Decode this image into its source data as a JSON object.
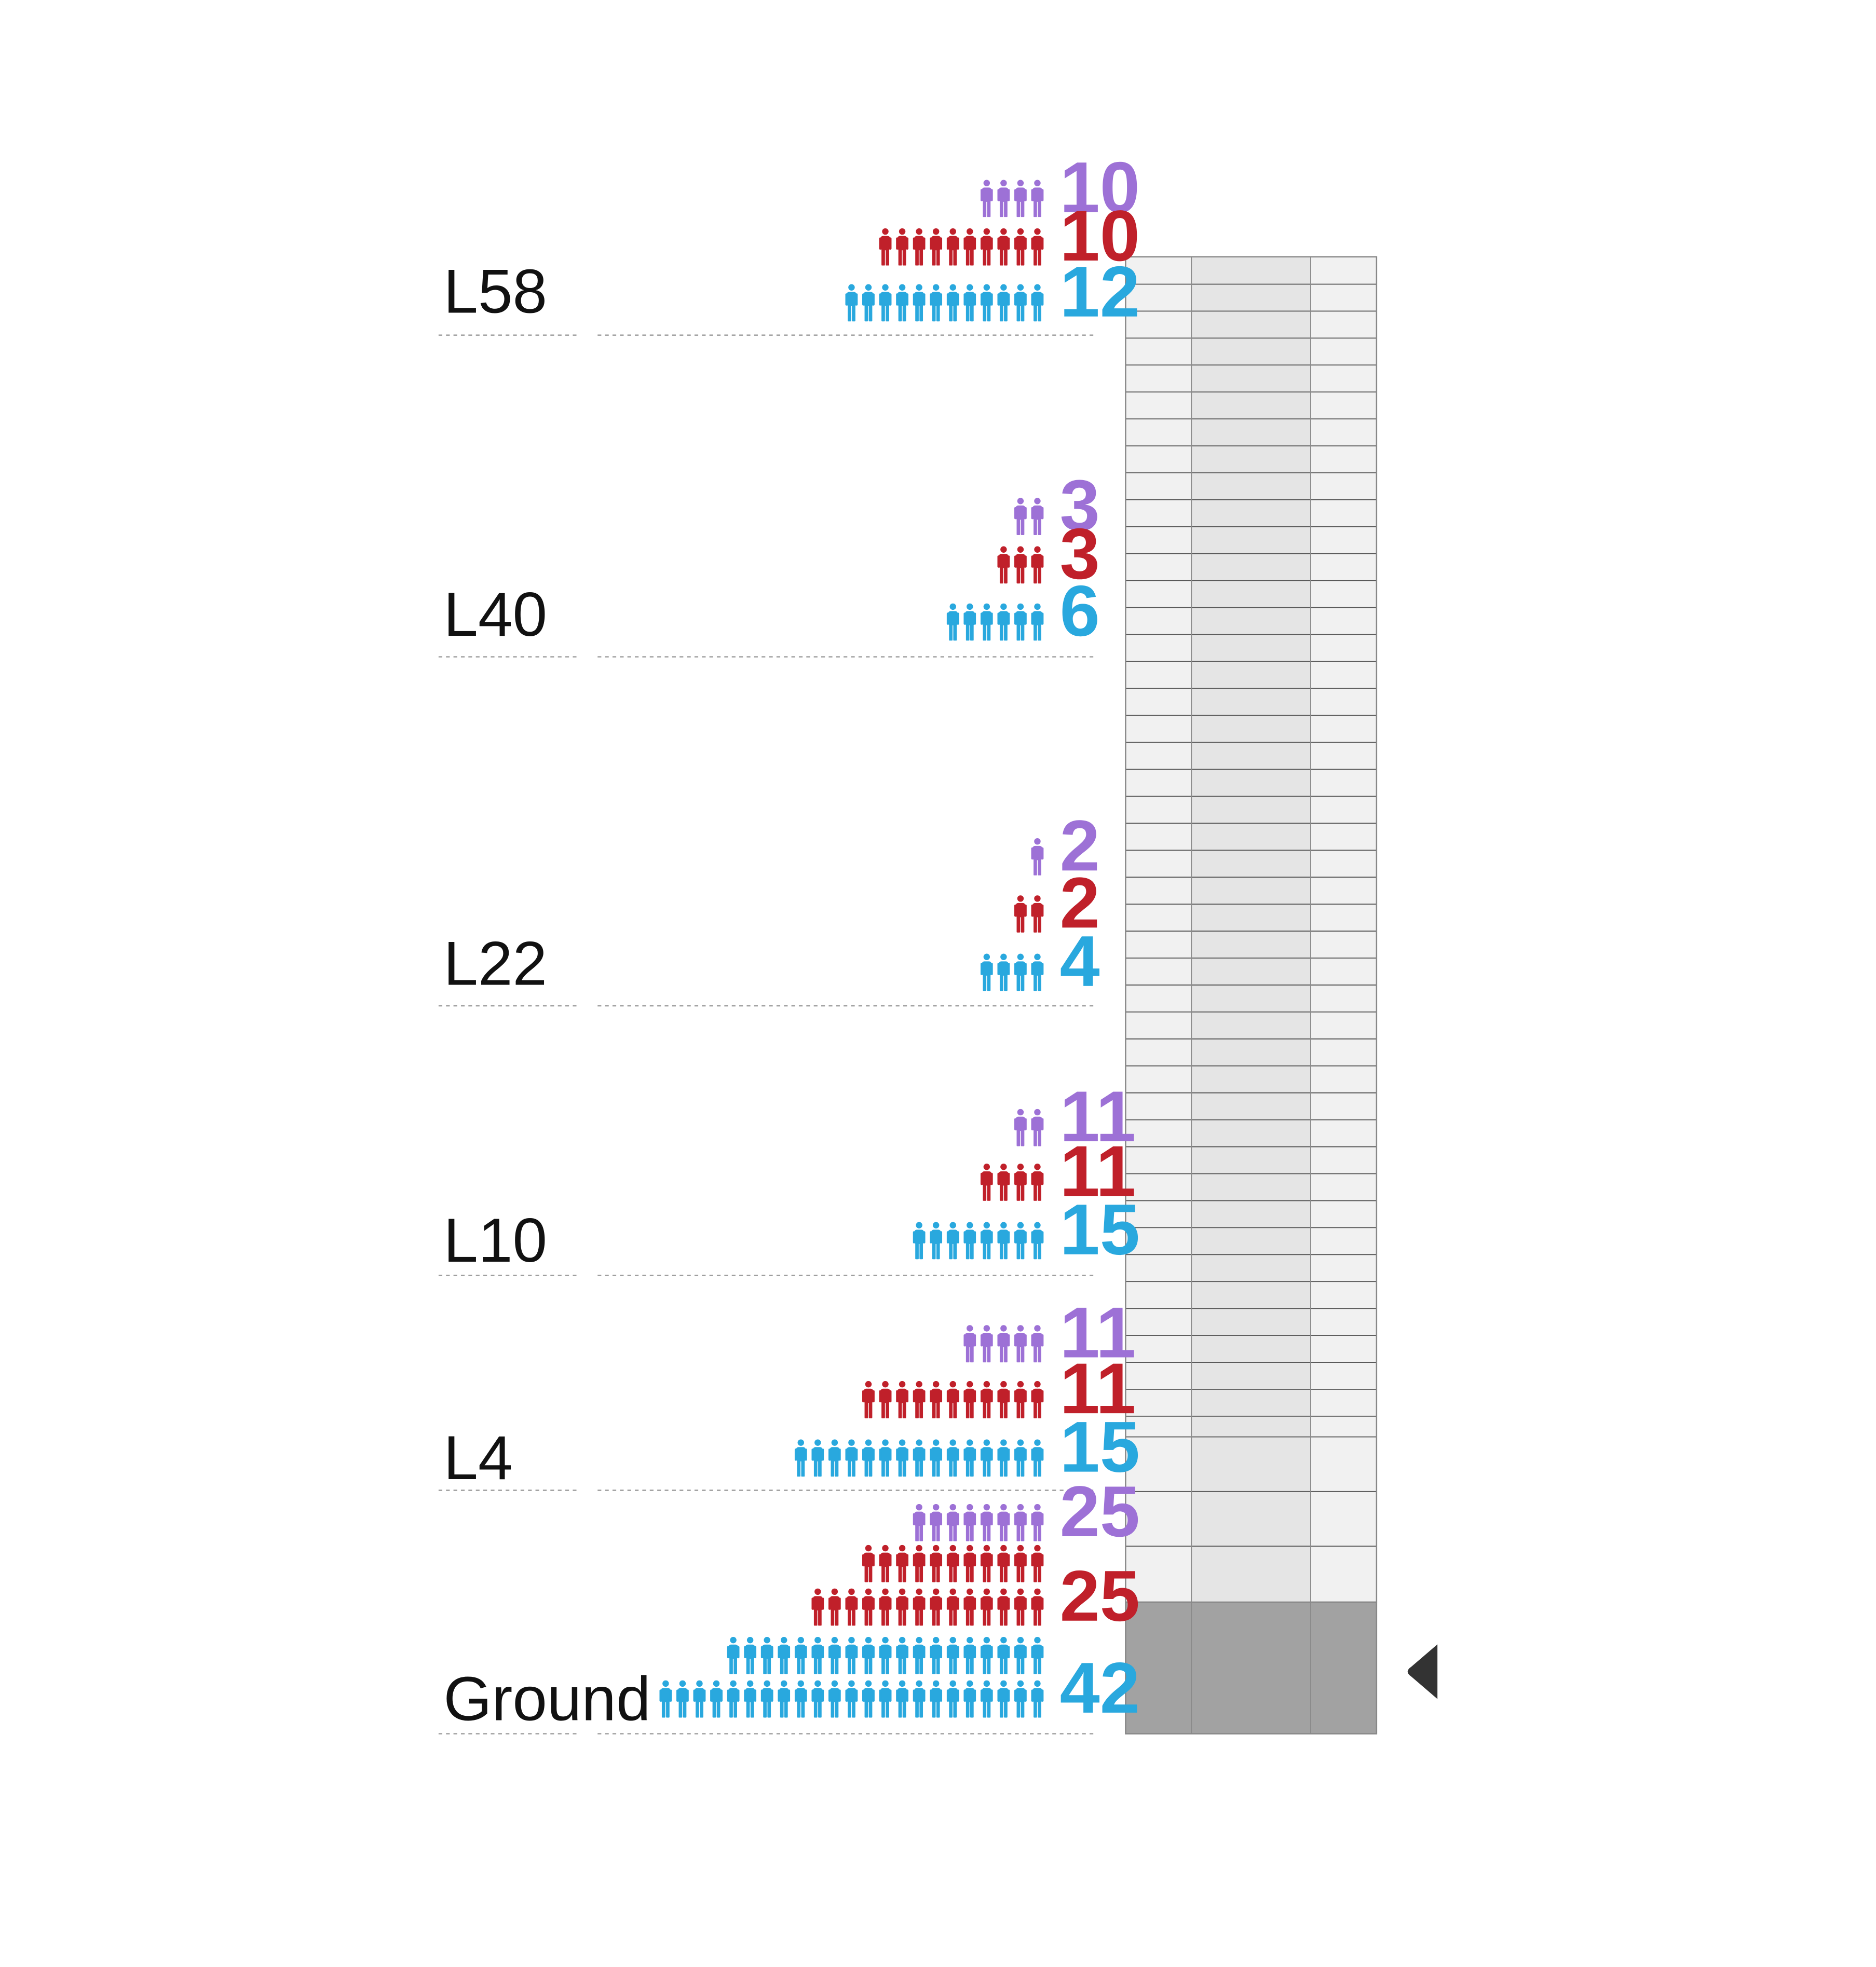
{
  "colors": {
    "purple": "#9d71d6",
    "red": "#c0202a",
    "blue": "#29a8de",
    "tower_light": "#f1f1f1",
    "tower_core": "#e5e5e5",
    "tower_base": "#a2a2a2",
    "marker": "#333333"
  },
  "icons": {
    "person": "person-icon",
    "marker": "triangle-left-icon"
  },
  "chart_data": {
    "type": "pictograph",
    "title": "",
    "series": [
      {
        "key": "purple",
        "name": ""
      },
      {
        "key": "red",
        "name": ""
      },
      {
        "key": "blue",
        "name": ""
      }
    ],
    "floors": [
      {
        "label": "L58",
        "values": {
          "purple": 10,
          "red": 10,
          "blue": 12
        },
        "icons": {
          "purple": 4,
          "red": 10,
          "blue": 12
        }
      },
      {
        "label": "L40",
        "values": {
          "purple": 3,
          "red": 3,
          "blue": 6
        },
        "icons": {
          "purple": 2,
          "red": 3,
          "blue": 6
        }
      },
      {
        "label": "L22",
        "values": {
          "purple": 2,
          "red": 2,
          "blue": 4
        },
        "icons": {
          "purple": 1,
          "red": 2,
          "blue": 4
        }
      },
      {
        "label": "L10",
        "values": {
          "purple": 11,
          "red": 11,
          "blue": 15
        },
        "icons": {
          "purple": 2,
          "red": 4,
          "blue": 8
        }
      },
      {
        "label": "L4",
        "values": {
          "purple": 11,
          "red": 11,
          "blue": 15
        },
        "icons": {
          "purple": 5,
          "red": 11,
          "blue": 15
        }
      },
      {
        "label": "Ground",
        "values": {
          "purple": 25,
          "red": 25,
          "blue": 42
        },
        "icons": {
          "purple": 8,
          "red": 25,
          "blue": 42
        }
      }
    ],
    "marker_floor": "Ground"
  }
}
